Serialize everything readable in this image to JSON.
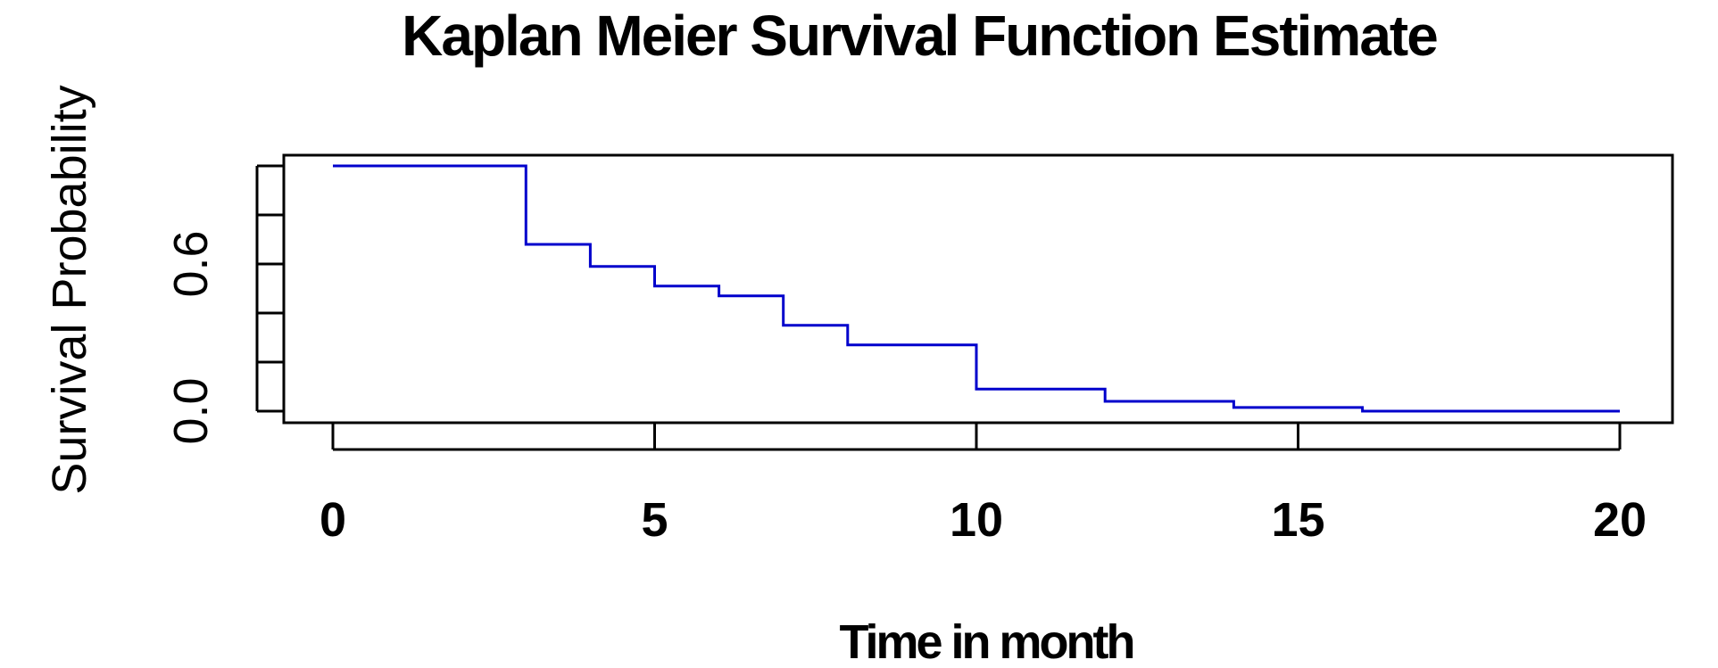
{
  "chart_data": {
    "type": "line",
    "title": "Kaplan Meier Survival Function Estimate",
    "xlabel": "Time in month",
    "ylabel": "Survival Probability",
    "xlim": [
      0,
      20
    ],
    "ylim": [
      0,
      1
    ],
    "x_ticks": [
      0,
      5,
      10,
      15,
      20
    ],
    "x_tick_labels": [
      "0",
      "5",
      "10",
      "15",
      "20"
    ],
    "y_ticks": [
      0,
      0.2,
      0.4,
      0.6,
      0.8,
      1.0
    ],
    "y_tick_labels": [
      "0.0",
      "",
      "",
      "0.6",
      "",
      ""
    ],
    "grid": false,
    "line_color": "#0000cc",
    "series": [
      {
        "step": "post",
        "x": [
          0,
          3,
          4,
          5,
          6,
          7,
          8,
          10,
          12,
          14,
          16,
          20
        ],
        "y": [
          1.0,
          0.68,
          0.59,
          0.51,
          0.47,
          0.35,
          0.27,
          0.09,
          0.04,
          0.015,
          0.0,
          0.0
        ]
      }
    ]
  }
}
